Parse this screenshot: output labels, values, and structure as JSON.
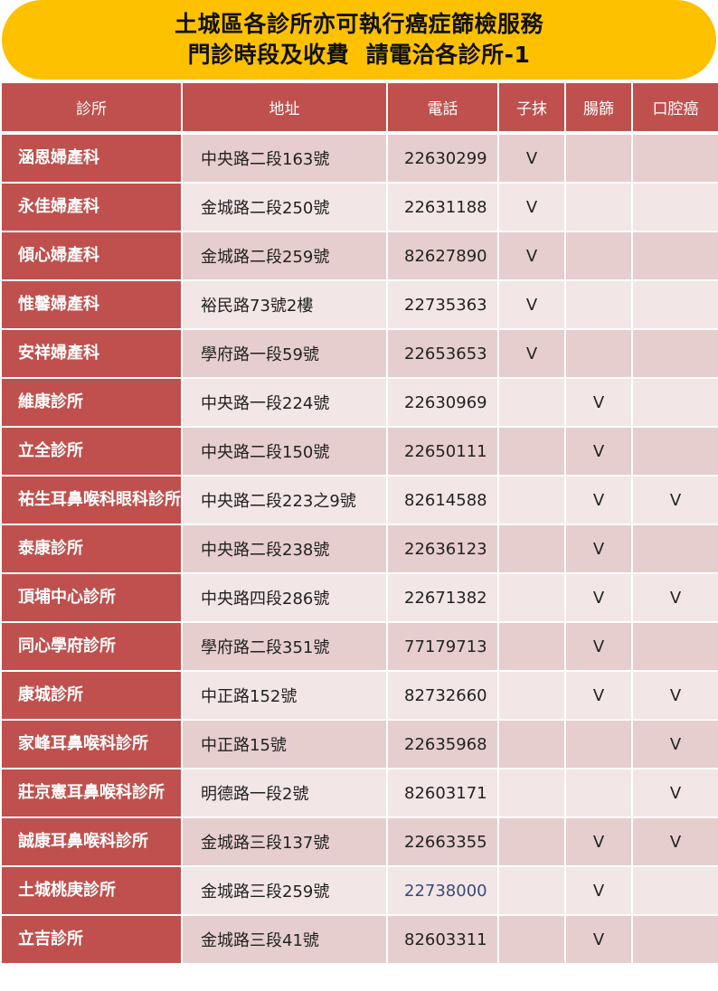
{
  "title": {
    "line1": "土城區各診所亦可執行癌症篩檢服務",
    "line2": "門診時段及收費  請電洽各診所-1"
  },
  "colors": {
    "banner": "#fdc100",
    "header": "#c0504d",
    "row_dark": "#e6cdce",
    "row_light": "#f2e6e7"
  },
  "columns": [
    "診所",
    "地址",
    "電話",
    "子抹",
    "腸篩",
    "口腔癌"
  ],
  "rows": [
    {
      "name": "涵恩婦產科",
      "address": "中央路二段163號",
      "phone": "22630299",
      "pap": "V",
      "colon": "",
      "oral": ""
    },
    {
      "name": "永佳婦產科",
      "address": "金城路二段250號",
      "phone": "22631188",
      "pap": "V",
      "colon": "",
      "oral": ""
    },
    {
      "name": "傾心婦產科",
      "address": "金城路二段259號",
      "phone": "82627890",
      "pap": "V",
      "colon": "",
      "oral": ""
    },
    {
      "name": "惟馨婦產科",
      "address": "裕民路73號2樓",
      "phone": "22735363",
      "pap": "V",
      "colon": "",
      "oral": ""
    },
    {
      "name": "安祥婦產科",
      "address": "學府路一段59號",
      "phone": "22653653",
      "pap": "V",
      "colon": "",
      "oral": ""
    },
    {
      "name": "維康診所",
      "address": "中央路一段224號",
      "phone": "22630969",
      "pap": "",
      "colon": "V",
      "oral": ""
    },
    {
      "name": "立全診所",
      "address": "中央路二段150號",
      "phone": "22650111",
      "pap": "",
      "colon": "V",
      "oral": ""
    },
    {
      "name": "祐生耳鼻喉科眼科診所",
      "address": "中央路二段223之9號",
      "phone": "82614588",
      "pap": "",
      "colon": "V",
      "oral": "V"
    },
    {
      "name": "泰康診所",
      "address": "中央路二段238號",
      "phone": "22636123",
      "pap": "",
      "colon": "V",
      "oral": ""
    },
    {
      "name": "頂埔中心診所",
      "address": "中央路四段286號",
      "phone": "22671382",
      "pap": "",
      "colon": "V",
      "oral": "V"
    },
    {
      "name": "同心學府診所",
      "address": "學府路二段351號",
      "phone": "77179713",
      "pap": "",
      "colon": "V",
      "oral": ""
    },
    {
      "name": "康城診所",
      "address": "中正路152號",
      "phone": "82732660",
      "pap": "",
      "colon": "V",
      "oral": "V"
    },
    {
      "name": "家峰耳鼻喉科診所",
      "address": "中正路15號",
      "phone": "22635968",
      "pap": "",
      "colon": "",
      "oral": "V"
    },
    {
      "name": "莊京憲耳鼻喉科診所",
      "address": "明德路一段2號",
      "phone": "82603171",
      "pap": "",
      "colon": "",
      "oral": "V"
    },
    {
      "name": "誠康耳鼻喉科診所",
      "address": "金城路三段137號",
      "phone": "22663355",
      "pap": "",
      "colon": "V",
      "oral": "V"
    },
    {
      "name": "土城桃庚診所",
      "address": "金城路三段259號",
      "phone": "22738000",
      "pap": "",
      "colon": "V",
      "oral": ""
    },
    {
      "name": "立吉診所",
      "address": "金城路三段41號",
      "phone": "82603311",
      "pap": "",
      "colon": "V",
      "oral": ""
    }
  ]
}
